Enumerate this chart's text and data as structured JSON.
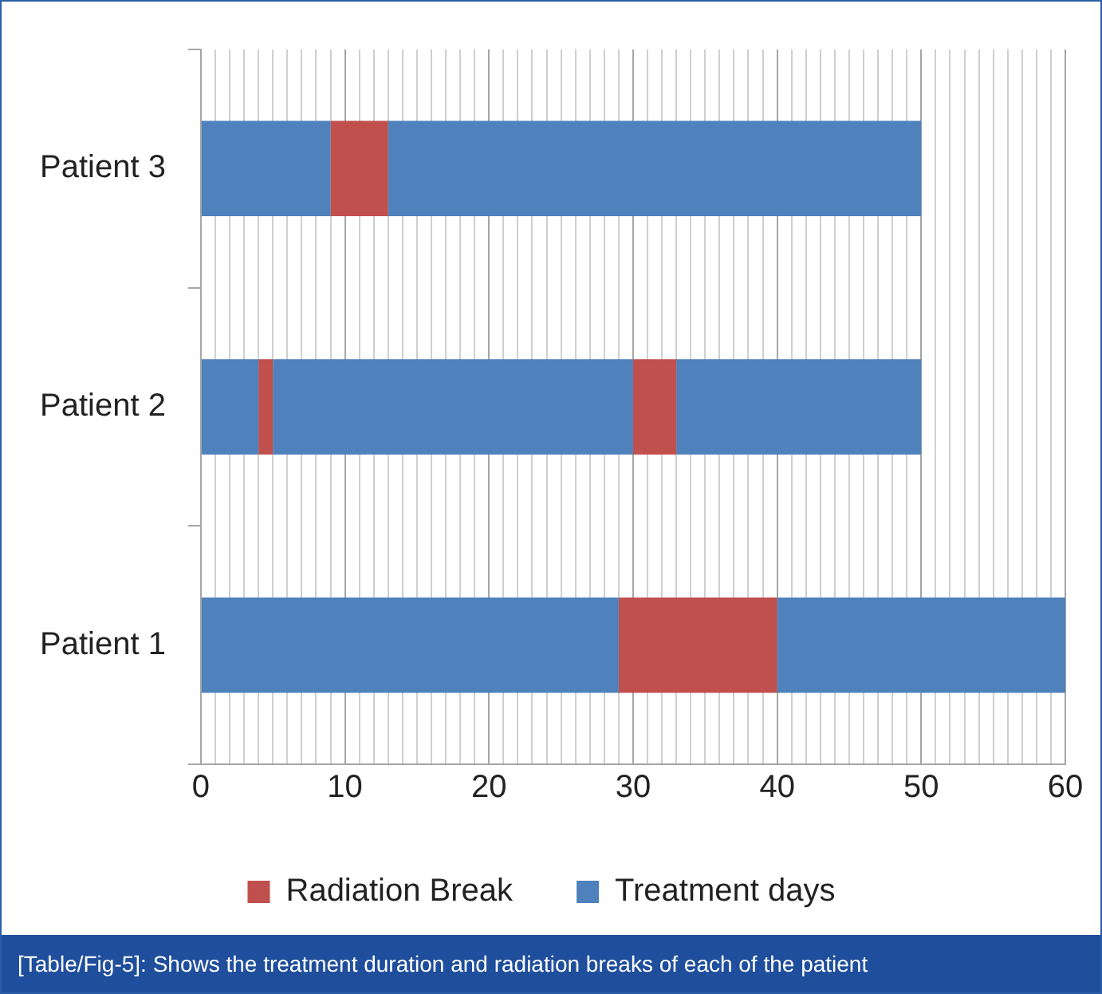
{
  "chart_data": {
    "type": "bar",
    "orientation": "horizontal",
    "stacked": true,
    "categories": [
      "Patient 3",
      "Patient 2",
      "Patient 1"
    ],
    "series": [
      {
        "name": "Treatment days",
        "color": "#4f81bd",
        "values": [
          9,
          4,
          29
        ]
      },
      {
        "name": "Radiation Break",
        "color": "#c0504d",
        "values": [
          4,
          1,
          11
        ]
      },
      {
        "color": "#4f81bd",
        "values": [
          37,
          25,
          20
        ]
      },
      {
        "color": "#c0504d",
        "values": [
          null,
          3,
          null
        ]
      },
      {
        "color": "#4f81bd",
        "values": [
          null,
          17,
          null
        ]
      }
    ],
    "xlim": [
      0,
      60
    ],
    "xticks": [
      0,
      {
        "value": 1,
        "label": null
      },
      {
        "value": 2,
        "label": null
      },
      {
        "value": 3,
        "label": null
      },
      {
        "value": 4,
        "label": null
      },
      {
        "value": 5,
        "label": null
      },
      {
        "value": 6,
        "label": null
      },
      {
        "value": 7,
        "label": null
      },
      {
        "value": 8,
        "label": null
      },
      {
        "value": 9,
        "label": null
      },
      10,
      {
        "value": 11,
        "label": null
      },
      {
        "value": 12,
        "label": null
      },
      {
        "value": 13,
        "label": null
      },
      {
        "value": 14,
        "label": null
      },
      {
        "value": 15,
        "label": null
      },
      {
        "value": 16,
        "label": null
      },
      {
        "value": 17,
        "label": null
      },
      {
        "value": 18,
        "label": null
      },
      {
        "value": 19,
        "label": null
      },
      20,
      {
        "value": 21,
        "label": null
      },
      {
        "value": 22,
        "label": null
      },
      {
        "value": 23,
        "label": null
      },
      {
        "value": 24,
        "label": null
      },
      {
        "value": 25,
        "label": null
      },
      {
        "value": 26,
        "label": null
      },
      {
        "value": 27,
        "label": null
      },
      {
        "value": 28,
        "label": null
      },
      {
        "value": 29,
        "label": null
      },
      30,
      {
        "value": 31,
        "label": null
      },
      {
        "value": 32,
        "label": null
      },
      {
        "value": 33,
        "label": null
      },
      {
        "value": 34,
        "label": null
      },
      {
        "value": 35,
        "label": null
      },
      {
        "value": 36,
        "label": null
      },
      {
        "value": 37,
        "label": null
      },
      {
        "value": 38,
        "label": null
      },
      {
        "value": 39,
        "label": null
      },
      40,
      {
        "value": 41,
        "label": null
      },
      {
        "value": 42,
        "label": null
      },
      {
        "value": 43,
        "label": null
      },
      {
        "value": 44,
        "label": null
      },
      {
        "value": 45,
        "label": null
      },
      {
        "value": 46,
        "label": null
      },
      {
        "value": 47,
        "label": null
      },
      {
        "value": 48,
        "label": null
      },
      {
        "value": 49,
        "label": null
      },
      50,
      {
        "value": 51,
        "label": null
      },
      {
        "value": 52,
        "label": null
      },
      {
        "value": 53,
        "label": null
      },
      {
        "value": 54,
        "label": null
      },
      {
        "value": 55,
        "label": null
      },
      {
        "value": 56,
        "label": null
      },
      {
        "value": 57,
        "label": null
      },
      {
        "value": 58,
        "label": null
      },
      {
        "value": 59,
        "label": null
      },
      60
    ],
    "grid": "x",
    "legend": "bottom",
    "annotations": [
      "[Table/Fig-5]: Shows the treatment duration and radiation breaks of each of the patient"
    ]
  }
}
